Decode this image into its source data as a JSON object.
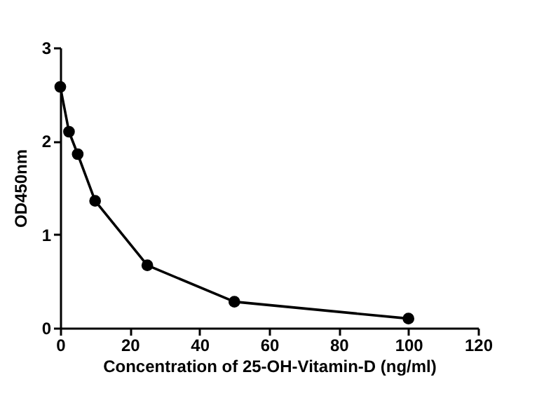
{
  "chart_data": {
    "type": "line",
    "xlabel": "Concentration of 25-OH-Vitamin-D (ng/ml)",
    "ylabel": "OD450nm",
    "x": [
      0,
      2.5,
      5,
      10,
      25,
      50,
      100
    ],
    "series": [
      {
        "color": "#000000",
        "values": [
          2.58,
          2.1,
          1.86,
          1.36,
          0.67,
          0.28,
          0.1
        ]
      }
    ],
    "xlim": [
      0,
      120
    ],
    "xticks": [
      0,
      20,
      40,
      60,
      80,
      100,
      120
    ],
    "ylim": [
      0,
      3
    ],
    "yticks": [
      0,
      1,
      2,
      3
    ],
    "grid": false,
    "marker": "circle",
    "line_style": "solid"
  }
}
